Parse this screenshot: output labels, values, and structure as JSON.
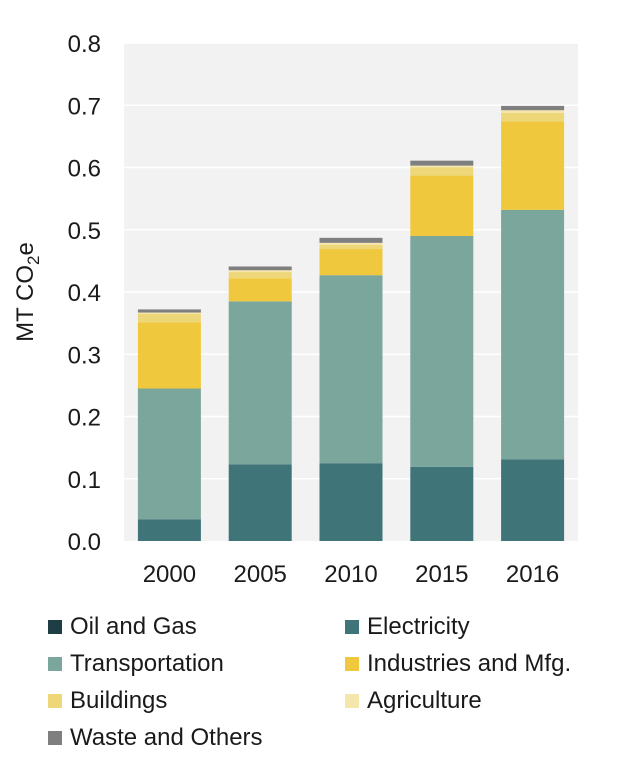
{
  "chart_data": {
    "type": "bar",
    "stacked": true,
    "categories": [
      "2000",
      "2005",
      "2010",
      "2015",
      "2016"
    ],
    "ylabel": "MT CO2e",
    "ylim": [
      0,
      0.8
    ],
    "yticks": [
      "0.0",
      "0.1",
      "0.2",
      "0.3",
      "0.4",
      "0.5",
      "0.6",
      "0.7",
      "0.8"
    ],
    "grid": true,
    "legend_position": "bottom",
    "series": [
      {
        "name": "Oil and Gas",
        "color": "#1f3d44",
        "values": [
          0.0,
          0.0,
          0.0,
          0.0,
          0.0
        ]
      },
      {
        "name": "Electricity",
        "color": "#3f7479",
        "values": [
          0.035,
          0.123,
          0.125,
          0.119,
          0.131
        ]
      },
      {
        "name": "Transportation",
        "color": "#7ba69b",
        "values": [
          0.21,
          0.262,
          0.302,
          0.371,
          0.401
        ]
      },
      {
        "name": "Industries and Mfg.",
        "color": "#efc83d",
        "values": [
          0.106,
          0.037,
          0.042,
          0.097,
          0.142
        ]
      },
      {
        "name": "Buildings",
        "color": "#eed778",
        "values": [
          0.014,
          0.01,
          0.007,
          0.013,
          0.014
        ]
      },
      {
        "name": "Agriculture",
        "color": "#f5e6ac",
        "values": [
          0.002,
          0.003,
          0.003,
          0.003,
          0.004
        ]
      },
      {
        "name": "Waste and Others",
        "color": "#7f7f7f",
        "values": [
          0.005,
          0.006,
          0.008,
          0.008,
          0.007
        ]
      }
    ]
  }
}
